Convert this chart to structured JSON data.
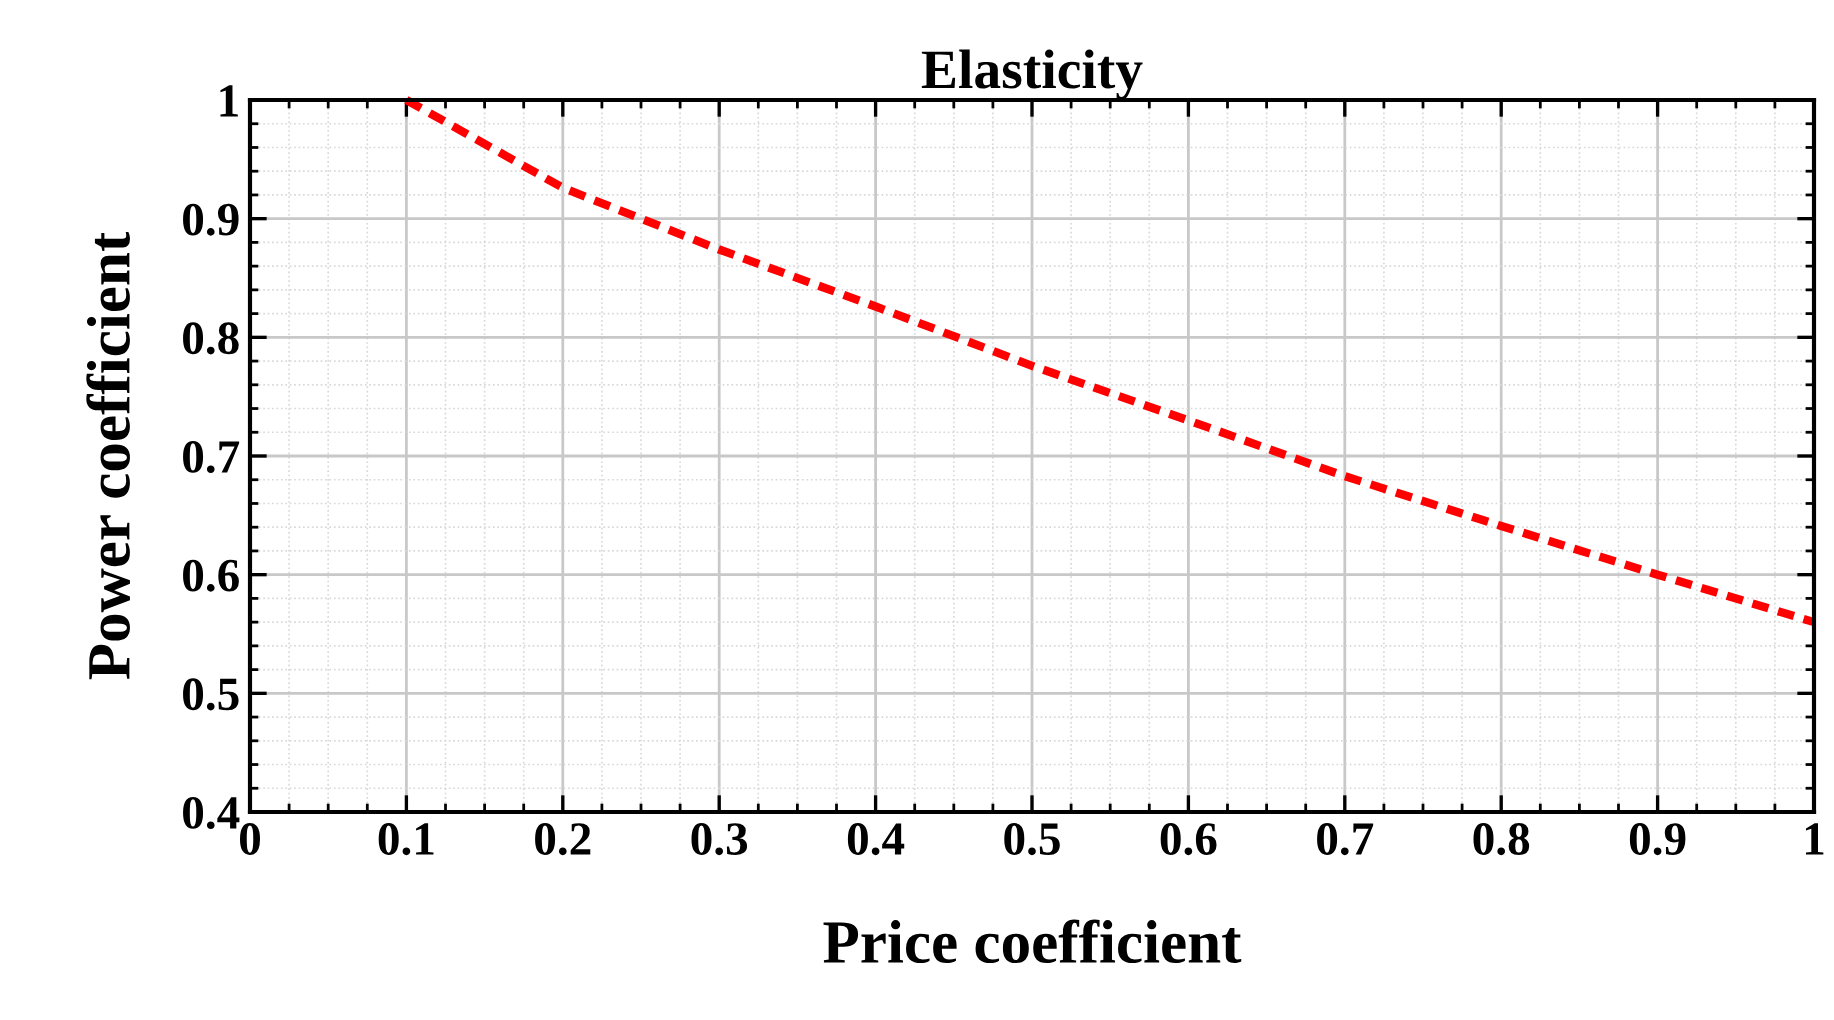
{
  "chart_data": {
    "type": "line",
    "title": "Elasticity",
    "xlabel": "Price coefficient",
    "ylabel": "Power coefficient",
    "x": [
      0.1,
      0.2,
      0.3,
      0.4,
      0.5,
      0.6,
      0.7,
      0.8,
      0.9,
      1.0
    ],
    "series": [
      {
        "color": "#ff0000",
        "values": [
          1.0,
          0.926,
          0.874,
          0.826,
          0.776,
          0.73,
          0.683,
          0.641,
          0.6,
          0.56
        ]
      }
    ],
    "xlim": [
      0,
      1
    ],
    "ylim": [
      0.4,
      1
    ],
    "xticks": [
      0,
      0.1,
      0.2,
      0.3,
      0.4,
      0.5,
      0.6,
      0.7,
      0.8,
      0.9,
      1
    ],
    "yticks": [
      0.4,
      0.5,
      0.6,
      0.7,
      0.8,
      0.9,
      1
    ],
    "grid": true,
    "line_style": "dashed",
    "marker": "none"
  }
}
